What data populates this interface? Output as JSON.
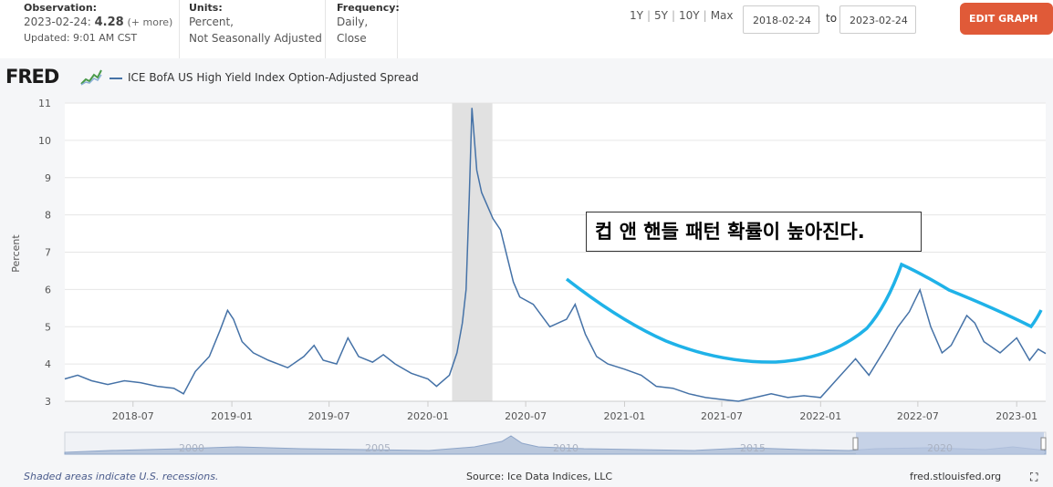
{
  "header": {
    "observation_label": "Observation:",
    "observation_date": "2023-02-24:",
    "observation_value": "4.28",
    "observation_more": "(+ more)",
    "updated": "Updated: 9:01 AM CST",
    "units_label": "Units:",
    "units_line1": "Percent,",
    "units_line2": "Not Seasonally Adjusted",
    "frequency_label": "Frequency:",
    "frequency_line1": "Daily,",
    "frequency_line2": "Close",
    "ranges": [
      "1Y",
      "5Y",
      "10Y",
      "Max"
    ],
    "date_from": "2018-02-24",
    "to_label": "to",
    "date_to": "2023-02-24",
    "edit_button": "EDIT GRAPH"
  },
  "logo": "FRED",
  "footer": {
    "recession_note": "Shaded areas indicate U.S. recessions.",
    "source": "Source: Ice Data Indices, LLC",
    "site": "fred.stlouisfed.org"
  },
  "annotation": "컵 앤 핸들 패턴 확률이 높아진다.",
  "colors": {
    "series": "#4572a7",
    "recession": "#e1e1e1",
    "cup_curve": "#1fb2e8",
    "edit_button": "#e05a38"
  },
  "chart_data": {
    "type": "line",
    "series": [
      {
        "name": "ICE BofA US High Yield Index Option-Adjusted Spread",
        "x": [
          "2018-02-24",
          "2018-03-20",
          "2018-04-15",
          "2018-05-15",
          "2018-06-15",
          "2018-07-15",
          "2018-08-15",
          "2018-09-15",
          "2018-10-03",
          "2018-10-25",
          "2018-11-20",
          "2018-12-10",
          "2018-12-24",
          "2019-01-04",
          "2019-01-20",
          "2019-02-10",
          "2019-03-10",
          "2019-04-15",
          "2019-05-15",
          "2019-06-03",
          "2019-06-20",
          "2019-07-15",
          "2019-08-05",
          "2019-08-25",
          "2019-09-20",
          "2019-10-10",
          "2019-11-01",
          "2019-12-01",
          "2020-01-01",
          "2020-01-17",
          "2020-02-10",
          "2020-02-24",
          "2020-03-05",
          "2020-03-12",
          "2020-03-18",
          "2020-03-23",
          "2020-04-01",
          "2020-04-10",
          "2020-05-01",
          "2020-05-15",
          "2020-06-08",
          "2020-06-20",
          "2020-07-15",
          "2020-08-15",
          "2020-09-15",
          "2020-10-01",
          "2020-10-20",
          "2020-11-10",
          "2020-12-01",
          "2021-01-01",
          "2021-02-01",
          "2021-03-01",
          "2021-04-01",
          "2021-05-01",
          "2021-06-01",
          "2021-07-01",
          "2021-08-01",
          "2021-09-01",
          "2021-10-01",
          "2021-11-01",
          "2021-12-01",
          "2022-01-01",
          "2022-02-01",
          "2022-03-07",
          "2022-04-01",
          "2022-05-01",
          "2022-05-25",
          "2022-06-15",
          "2022-07-05",
          "2022-07-25",
          "2022-08-15",
          "2022-09-01",
          "2022-09-30",
          "2022-10-15",
          "2022-11-01",
          "2022-12-01",
          "2023-01-01",
          "2023-01-25",
          "2023-02-10",
          "2023-02-24"
        ],
        "values": [
          3.6,
          3.7,
          3.55,
          3.45,
          3.55,
          3.5,
          3.4,
          3.35,
          3.2,
          3.8,
          4.2,
          4.9,
          5.44,
          5.2,
          4.6,
          4.3,
          4.1,
          3.9,
          4.2,
          4.5,
          4.1,
          4.0,
          4.7,
          4.2,
          4.05,
          4.25,
          4.0,
          3.75,
          3.6,
          3.4,
          3.7,
          4.3,
          5.1,
          6.0,
          8.5,
          10.87,
          9.2,
          8.6,
          7.9,
          7.6,
          6.2,
          5.8,
          5.6,
          5.0,
          5.2,
          5.6,
          4.8,
          4.2,
          4.0,
          3.86,
          3.7,
          3.4,
          3.35,
          3.2,
          3.1,
          3.05,
          3.0,
          3.1,
          3.2,
          3.1,
          3.15,
          3.1,
          3.6,
          4.14,
          3.7,
          4.4,
          5.0,
          5.4,
          5.99,
          5.0,
          4.3,
          4.5,
          5.3,
          5.1,
          4.6,
          4.3,
          4.7,
          4.1,
          4.4,
          4.28
        ]
      }
    ],
    "xtick_labels": [
      "2018-07",
      "2019-01",
      "2019-07",
      "2020-01",
      "2020-07",
      "2021-01",
      "2021-07",
      "2022-01",
      "2022-07",
      "2023-01"
    ],
    "ytick_labels": [
      "3",
      "4",
      "5",
      "6",
      "7",
      "8",
      "9",
      "10",
      "11"
    ],
    "ylabel": "Percent",
    "ylim": [
      3,
      11
    ],
    "xlim": [
      "2018-02-24",
      "2023-02-24"
    ],
    "recession": [
      "2020-02-15",
      "2020-04-30"
    ],
    "navigator_labels": [
      "2000",
      "2005",
      "2010",
      "2015",
      "2020"
    ],
    "grid": "horizontal",
    "legend": "top-left"
  }
}
